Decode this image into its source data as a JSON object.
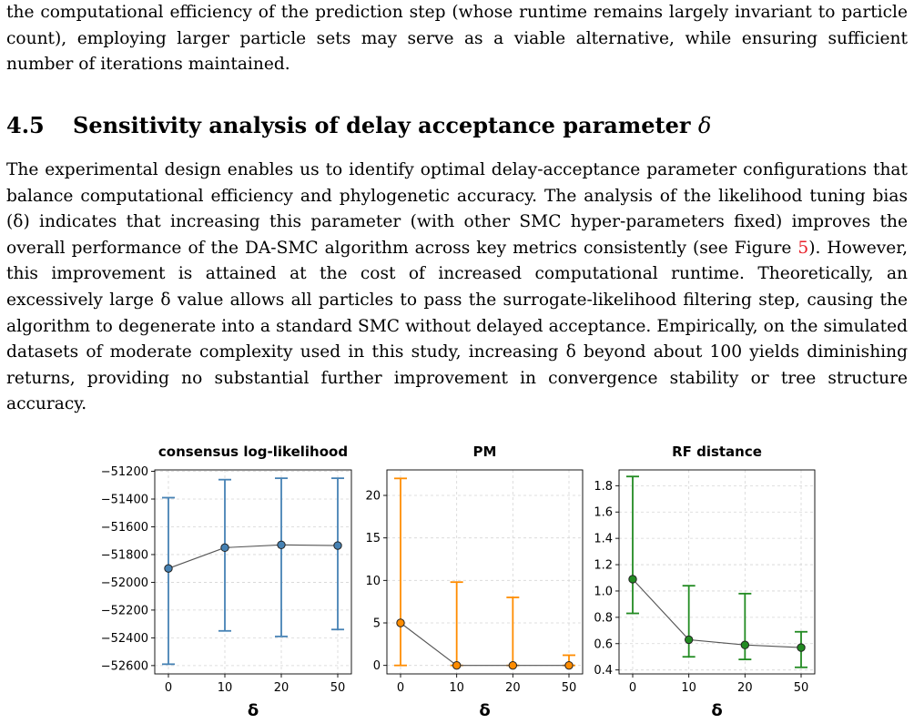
{
  "text": {
    "para1": "the computational efficiency of the prediction step (whose runtime remains largely invariant to particle count), employing larger particle sets may serve as a viable alternative, while ensuring sufficient number of iterations maintained.",
    "section_number": "4.5",
    "section_title": "Sensitivity analysis of delay acceptance parameter",
    "section_symbol": "δ",
    "para2_before_ref": "The experimental design enables us to identify optimal delay-acceptance parameter configurations that balance computational efficiency and phylogenetic accuracy. The analysis of the likelihood tuning bias (δ) indicates that increasing this parameter (with other SMC hyper-parameters fixed) improves the overall performance of the DA-SMC algorithm across key metrics consistently (see Figure ",
    "para2_ref": "5",
    "para2_after_ref": "). However, this improvement is attained at the cost of increased computational runtime. Theoretically, an excessively large δ value allows all particles to pass the surrogate-likelihood filtering step, causing the algorithm to degenerate into a standard SMC without delayed acceptance. Empirically, on the simulated datasets of moderate complexity used in this study, increasing δ beyond about 100 yields diminishing returns, providing no substantial further improvement in convergence stability or tree structure accuracy."
  },
  "colors": {
    "ll": "#4682b4",
    "pm": "#ff8c00",
    "rf": "#228b22",
    "ref_link": "#e8202a"
  },
  "chart_data": [
    {
      "type": "errorbar-line",
      "title": "consensus log-likelihood",
      "xlabel": "δ",
      "ylabel": "",
      "categories": [
        "0",
        "10",
        "20",
        "50"
      ],
      "values": [
        -51900,
        -51750,
        -51730,
        -51735
      ],
      "err_low": [
        -52590,
        -52350,
        -52390,
        -52340
      ],
      "err_high": [
        -51390,
        -51260,
        -51250,
        -51250
      ],
      "ylim": [
        -52660,
        -51190
      ],
      "yticks": [
        -51200,
        -51400,
        -51600,
        -51800,
        -52000,
        -52200,
        -52400,
        -52600
      ],
      "ytick_labels": [
        "−51200",
        "−51400",
        "−51600",
        "−51800",
        "−52000",
        "−52200",
        "−52400",
        "−52600"
      ],
      "grid": true,
      "color": "#4682b4",
      "marker_color": "#4682b4"
    },
    {
      "type": "errorbar-line",
      "title": "PM",
      "xlabel": "δ",
      "ylabel": "",
      "categories": [
        "0",
        "10",
        "20",
        "50"
      ],
      "values": [
        5,
        0,
        0,
        0
      ],
      "err_low": [
        0,
        0,
        0,
        0
      ],
      "err_high": [
        22,
        9.8,
        8,
        1.2
      ],
      "ylim": [
        -1,
        23
      ],
      "yticks": [
        0,
        5,
        10,
        15,
        20
      ],
      "ytick_labels": [
        "0",
        "5",
        "10",
        "15",
        "20"
      ],
      "grid": true,
      "color": "#ff8c00",
      "marker_color": "#ff8c00"
    },
    {
      "type": "errorbar-line",
      "title": "RF distance",
      "xlabel": "δ",
      "ylabel": "",
      "categories": [
        "0",
        "10",
        "20",
        "50"
      ],
      "values": [
        1.09,
        0.63,
        0.59,
        0.57
      ],
      "err_low": [
        0.83,
        0.5,
        0.48,
        0.42
      ],
      "err_high": [
        1.87,
        1.04,
        0.98,
        0.69
      ],
      "ylim": [
        0.37,
        1.92
      ],
      "yticks": [
        0.4,
        0.6,
        0.8,
        1.0,
        1.2,
        1.4,
        1.6,
        1.8
      ],
      "ytick_labels": [
        "0.4",
        "0.6",
        "0.8",
        "1.0",
        "1.2",
        "1.4",
        "1.6",
        "1.8"
      ],
      "grid": true,
      "color": "#228b22",
      "marker_color": "#228b22"
    }
  ]
}
